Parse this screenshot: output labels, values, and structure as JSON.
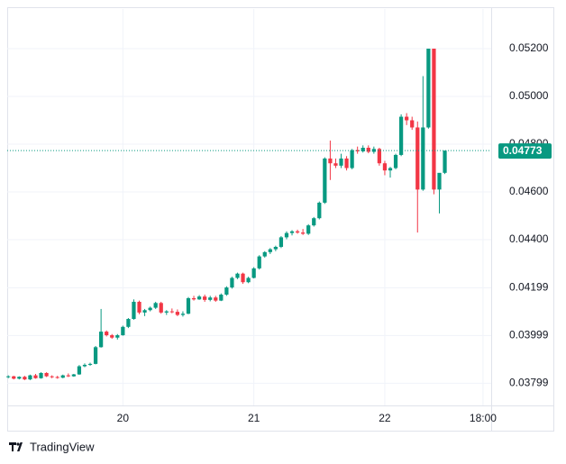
{
  "chart_data": {
    "type": "candlestick",
    "categories": [
      null,
      null,
      null,
      null,
      null,
      null,
      null,
      null,
      null,
      null,
      null,
      null,
      null,
      null,
      null,
      null,
      null,
      null,
      null,
      null,
      null,
      null,
      null,
      null,
      null,
      null,
      null,
      null,
      null,
      null,
      null,
      null,
      null,
      null,
      null,
      null,
      null,
      null,
      null,
      null,
      null,
      null,
      null,
      null,
      null,
      null,
      null,
      null,
      null,
      null,
      null,
      null,
      null,
      null,
      null,
      null,
      null,
      null,
      null,
      null,
      null,
      null,
      null,
      null,
      null,
      null,
      null,
      null,
      null,
      null,
      null,
      null,
      null,
      null,
      null,
      null,
      null,
      null,
      null,
      null,
      null
    ],
    "open": [
      0.03825,
      0.03828,
      0.03818,
      0.03826,
      0.03815,
      0.03832,
      0.0382,
      0.03842,
      0.03828,
      0.03825,
      0.03822,
      0.03832,
      0.03828,
      0.03836,
      0.0387,
      0.03876,
      0.0388,
      0.0395,
      0.04015,
      0.04,
      0.0399,
      0.04,
      0.04035,
      0.04068,
      0.0414,
      0.04095,
      0.04105,
      0.04115,
      0.04135,
      0.04095,
      0.041,
      0.04098,
      0.04085,
      0.0409,
      0.04155,
      0.0415,
      0.04162,
      0.04148,
      0.04158,
      0.04145,
      0.0417,
      0.042,
      0.0424,
      0.04258,
      0.04222,
      0.0424,
      0.0428,
      0.0433,
      0.04348,
      0.0436,
      0.0437,
      0.0441,
      0.04428,
      0.04435,
      0.0443,
      0.04425,
      0.0446,
      0.0449,
      0.04555,
      0.0474,
      0.0472,
      0.0471,
      0.0474,
      0.047,
      0.04775,
      0.0477,
      0.04785,
      0.04768,
      0.0478,
      0.0472,
      0.0469,
      0.047,
      0.04755,
      0.04915,
      0.049,
      0.0487,
      0.0461,
      0.0487,
      0.052,
      0.0461,
      0.0468
    ],
    "high": [
      0.03832,
      0.0383,
      0.03828,
      0.0383,
      0.03835,
      0.03838,
      0.03845,
      0.03845,
      0.03832,
      0.0383,
      0.03835,
      0.0384,
      0.03838,
      0.03875,
      0.03882,
      0.03885,
      0.03955,
      0.0411,
      0.0402,
      0.04005,
      0.04005,
      0.0404,
      0.04072,
      0.0415,
      0.04145,
      0.0411,
      0.0412,
      0.0414,
      0.0414,
      0.04105,
      0.04112,
      0.04108,
      0.041,
      0.0416,
      0.04165,
      0.04168,
      0.0417,
      0.04165,
      0.04165,
      0.04175,
      0.04205,
      0.04245,
      0.04262,
      0.04262,
      0.04245,
      0.04285,
      0.04335,
      0.04352,
      0.04365,
      0.04375,
      0.04415,
      0.04435,
      0.0444,
      0.04442,
      0.04445,
      0.04465,
      0.04495,
      0.0456,
      0.04745,
      0.04815,
      0.0474,
      0.0476,
      0.0475,
      0.0478,
      0.0479,
      0.04795,
      0.04795,
      0.0479,
      0.04785,
      0.0473,
      0.04705,
      0.0476,
      0.04925,
      0.0493,
      0.04915,
      0.04895,
      0.05085,
      0.052,
      0.052,
      0.0467,
      0.04773
    ],
    "low": [
      0.0382,
      0.03815,
      0.03815,
      0.03812,
      0.03812,
      0.03818,
      0.03818,
      0.03825,
      0.0382,
      0.03818,
      0.0382,
      0.03825,
      0.03826,
      0.03834,
      0.03866,
      0.03872,
      0.03878,
      0.03948,
      0.03995,
      0.03985,
      0.03982,
      0.03998,
      0.0403,
      0.04065,
      0.04088,
      0.0408,
      0.041,
      0.0411,
      0.0409,
      0.04085,
      0.04092,
      0.0408,
      0.04078,
      0.04088,
      0.04145,
      0.04148,
      0.0414,
      0.04142,
      0.0414,
      0.04143,
      0.04165,
      0.04195,
      0.04235,
      0.04215,
      0.04218,
      0.04238,
      0.04275,
      0.04325,
      0.0434,
      0.04352,
      0.04365,
      0.04402,
      0.04418,
      0.04425,
      0.0442,
      0.0442,
      0.04455,
      0.04485,
      0.0455,
      0.0465,
      0.047,
      0.047,
      0.0469,
      0.04695,
      0.0476,
      0.04765,
      0.04762,
      0.0476,
      0.0471,
      0.0467,
      0.0466,
      0.04695,
      0.0475,
      0.0488,
      0.0486,
      0.0443,
      0.04605,
      0.04865,
      0.0459,
      0.0451,
      0.04675
    ],
    "close": [
      0.03828,
      0.03818,
      0.03826,
      0.03815,
      0.03832,
      0.0382,
      0.03842,
      0.03828,
      0.03825,
      0.03822,
      0.03832,
      0.03828,
      0.03836,
      0.0387,
      0.03876,
      0.0388,
      0.0395,
      0.04015,
      0.04,
      0.0399,
      0.04,
      0.04035,
      0.04068,
      0.0414,
      0.04095,
      0.04105,
      0.04115,
      0.04135,
      0.04095,
      0.041,
      0.04098,
      0.04085,
      0.0409,
      0.04155,
      0.0415,
      0.04162,
      0.04148,
      0.04158,
      0.04145,
      0.0417,
      0.042,
      0.0424,
      0.04258,
      0.04222,
      0.0424,
      0.0428,
      0.0433,
      0.04348,
      0.0436,
      0.0437,
      0.0441,
      0.04428,
      0.04435,
      0.0443,
      0.04425,
      0.0446,
      0.0449,
      0.04555,
      0.0474,
      0.0472,
      0.0471,
      0.0474,
      0.047,
      0.04775,
      0.0477,
      0.04785,
      0.04768,
      0.0478,
      0.0472,
      0.0469,
      0.047,
      0.04755,
      0.04915,
      0.049,
      0.0487,
      0.0461,
      0.0487,
      0.052,
      0.0461,
      0.0468,
      0.04773
    ],
    "up_color": "#089981",
    "down_color": "#f23645",
    "ylim": [
      0.03706,
      0.05366
    ],
    "yticks": [
      {
        "value": 0.052,
        "label": "0.05200"
      },
      {
        "value": 0.05,
        "label": "0.05000"
      },
      {
        "value": 0.048,
        "label": "0.04800"
      },
      {
        "value": 0.046,
        "label": "0.04600"
      },
      {
        "value": 0.044,
        "label": "0.04400"
      },
      {
        "value": 0.04199,
        "label": "0.04199"
      },
      {
        "value": 0.03999,
        "label": "0.03999"
      },
      {
        "value": 0.03799,
        "label": "0.03799"
      }
    ],
    "xlim": [
      -0.2,
      88.5
    ],
    "xticks": [
      {
        "value": 21,
        "label": "20"
      },
      {
        "value": 45,
        "label": "21"
      },
      {
        "value": 69,
        "label": "22"
      },
      {
        "value": 87,
        "label": "18:00"
      }
    ],
    "last_price": {
      "value": 0.04773,
      "label": "0.04773"
    },
    "grid": true
  },
  "brand": "TradingView"
}
